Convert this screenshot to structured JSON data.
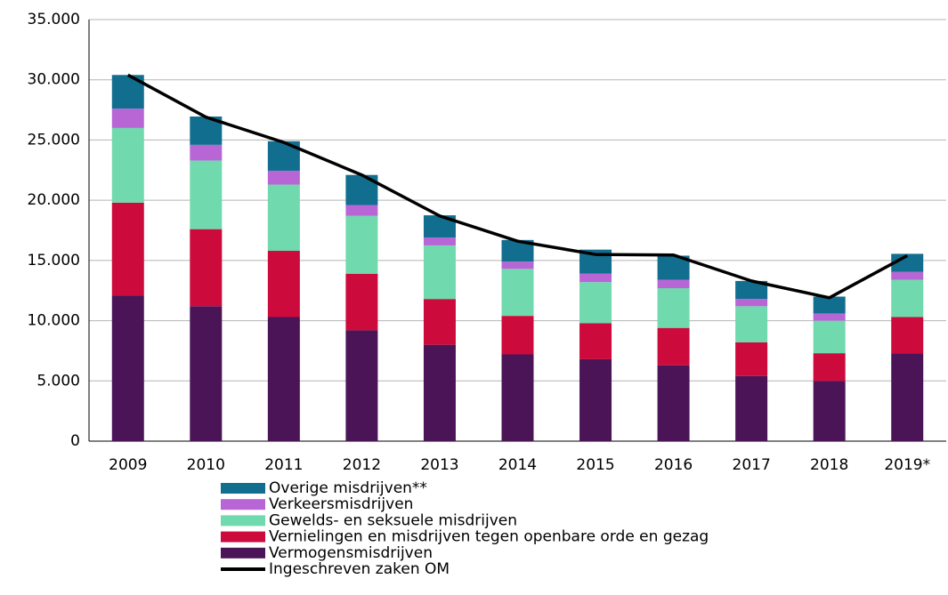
{
  "chart_data": {
    "type": "bar",
    "stacked": true,
    "categories": [
      "2009",
      "2010",
      "2011",
      "2012",
      "2013",
      "2014",
      "2015",
      "2016",
      "2017",
      "2018",
      "2019*"
    ],
    "series": [
      {
        "name": "Vermogensmisdrijven",
        "color": "#4a1457",
        "values": [
          12100,
          11200,
          10300,
          9200,
          8000,
          7200,
          6800,
          6300,
          5400,
          5000,
          7300
        ]
      },
      {
        "name": "Vernielingen en misdrijven tegen openbare orde en gezag",
        "color": "#cc0a3c",
        "values": [
          7700,
          6400,
          5500,
          4700,
          3800,
          3200,
          3000,
          3100,
          2800,
          2300,
          3000
        ]
      },
      {
        "name": "Gewelds- en seksuele misdrijven",
        "color": "#70d9ae",
        "values": [
          6200,
          5700,
          5500,
          4800,
          4450,
          3900,
          3400,
          3300,
          3000,
          2700,
          3100
        ]
      },
      {
        "name": "Verkeersmisdrijven",
        "color": "#b866d6",
        "values": [
          1600,
          1300,
          1150,
          900,
          650,
          600,
          700,
          700,
          600,
          600,
          650
        ]
      },
      {
        "name": "Overige misdrijven**",
        "color": "#126e8e",
        "values": [
          2800,
          2350,
          2450,
          2500,
          1850,
          1800,
          2000,
          2000,
          1500,
          1400,
          1500
        ]
      },
      {
        "name": "Ingeschreven zaken OM",
        "color": "#000000",
        "type": "line",
        "values": [
          30400,
          26900,
          24800,
          22100,
          18700,
          16600,
          15500,
          15450,
          13300,
          11900,
          15400
        ]
      }
    ],
    "ylim": [
      0,
      35000
    ],
    "yticks": [
      0,
      {
        "value": 5000,
        "label": "5.000"
      },
      {
        "value": 10000,
        "label": "10.000"
      },
      {
        "value": 15000,
        "label": "15.000"
      },
      {
        "value": 20000,
        "label": "20.000"
      },
      {
        "value": 25000,
        "label": "25.000"
      },
      {
        "value": 30000,
        "label": "30.000"
      },
      {
        "value": 35000,
        "label": "35.000"
      }
    ],
    "grid": true,
    "legend": "bottom"
  }
}
